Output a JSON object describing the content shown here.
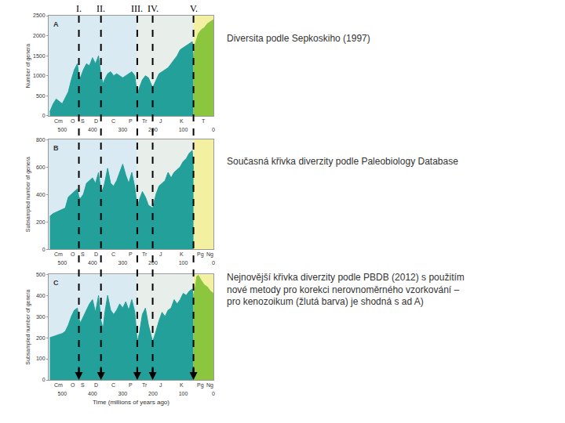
{
  "chart_data": [
    {
      "type": "area",
      "label": "A",
      "y_title": "Number of genera",
      "xlim": [
        545,
        0
      ],
      "xticks": [
        500,
        400,
        300,
        200,
        100,
        0
      ],
      "ylim": [
        0,
        2500
      ],
      "yticks": [
        0,
        500,
        1000,
        1500,
        2000,
        2500
      ],
      "caption": [
        "Diversita podle Sepkoskiho (1997)"
      ],
      "bands": [
        {
          "x0": 545,
          "x1": 252,
          "color": "#d9eaf2"
        },
        {
          "x0": 252,
          "x1": 66,
          "color": "#e8eee9"
        },
        {
          "x0": 66,
          "x1": 0,
          "color": "#f4f0a2"
        }
      ],
      "periods": [
        {
          "x": 513,
          "label": "Cm"
        },
        {
          "x": 465,
          "label": "O"
        },
        {
          "x": 432,
          "label": "S"
        },
        {
          "x": 389,
          "label": "D"
        },
        {
          "x": 330,
          "label": "C"
        },
        {
          "x": 275,
          "label": "P"
        },
        {
          "x": 226,
          "label": "Tr"
        },
        {
          "x": 173,
          "label": "J"
        },
        {
          "x": 105,
          "label": "K"
        },
        {
          "x": 33,
          "label": "T"
        }
      ],
      "series": [
        {
          "color": "#22a099",
          "x": [
            541,
            530,
            520,
            510,
            500,
            490,
            480,
            470,
            460,
            450,
            445,
            440,
            430,
            420,
            410,
            400,
            390,
            380,
            372,
            365,
            360,
            350,
            340,
            330,
            320,
            310,
            300,
            290,
            280,
            270,
            260,
            252,
            245,
            235,
            225,
            215,
            201,
            190,
            180,
            170,
            160,
            150,
            140,
            130,
            120,
            110,
            100,
            90,
            80,
            70,
            66
          ],
          "values": [
            100,
            300,
            420,
            350,
            300,
            450,
            600,
            900,
            1150,
            1300,
            1000,
            950,
            1150,
            1300,
            1250,
            1450,
            1300,
            1500,
            1000,
            800,
            900,
            1050,
            1100,
            1000,
            1050,
            1000,
            950,
            1000,
            1050,
            1100,
            1000,
            500,
            700,
            900,
            1000,
            950,
            700,
            900,
            1050,
            1100,
            1150,
            1200,
            1300,
            1400,
            1500,
            1650,
            1700,
            1750,
            1800,
            1850,
            1400
          ]
        },
        {
          "color": "#8cc63e",
          "x": [
            66,
            60,
            50,
            40,
            30,
            20,
            10,
            0
          ],
          "values": [
            1400,
            1800,
            2050,
            2150,
            2200,
            2300,
            2350,
            2400
          ]
        }
      ]
    },
    {
      "type": "area",
      "label": "B",
      "y_title": "Subsampled number of genera",
      "xlim": [
        545,
        0
      ],
      "xticks": [
        500,
        400,
        300,
        200,
        100,
        0
      ],
      "ylim": [
        0,
        800
      ],
      "yticks": [
        0,
        200,
        400,
        600,
        800
      ],
      "caption": [
        "Současná křivka diverzity podle Paleobiology Database"
      ],
      "bands": [
        {
          "x0": 545,
          "x1": 252,
          "color": "#d9eaf2"
        },
        {
          "x0": 252,
          "x1": 66,
          "color": "#e8eee9"
        },
        {
          "x0": 66,
          "x1": 0,
          "color": "#f4f0a2"
        }
      ],
      "periods": [
        {
          "x": 513,
          "label": "Cm"
        },
        {
          "x": 465,
          "label": "O"
        },
        {
          "x": 432,
          "label": "S"
        },
        {
          "x": 389,
          "label": "D"
        },
        {
          "x": 330,
          "label": "C"
        },
        {
          "x": 275,
          "label": "P"
        },
        {
          "x": 226,
          "label": "Tr"
        },
        {
          "x": 173,
          "label": "J"
        },
        {
          "x": 105,
          "label": "K"
        },
        {
          "x": 44,
          "label": "Pg"
        },
        {
          "x": 12,
          "label": "Ng"
        }
      ],
      "series": [
        {
          "color": "#22a099",
          "x": [
            541,
            530,
            520,
            510,
            500,
            490,
            480,
            470,
            460,
            450,
            445,
            440,
            430,
            420,
            410,
            400,
            390,
            380,
            372,
            365,
            360,
            350,
            340,
            330,
            320,
            310,
            300,
            290,
            280,
            270,
            260,
            252,
            245,
            235,
            225,
            215,
            201,
            190,
            180,
            170,
            160,
            150,
            140,
            130,
            120,
            110,
            100,
            90,
            80,
            70,
            66
          ],
          "values": [
            240,
            260,
            270,
            280,
            290,
            300,
            380,
            400,
            420,
            440,
            380,
            370,
            400,
            480,
            500,
            520,
            480,
            560,
            420,
            440,
            480,
            590,
            480,
            460,
            500,
            560,
            620,
            540,
            480,
            560,
            450,
            300,
            360,
            420,
            380,
            320,
            300,
            400,
            460,
            480,
            500,
            560,
            520,
            560,
            580,
            600,
            640,
            660,
            700,
            720,
            580
          ]
        }
      ]
    },
    {
      "type": "area",
      "label": "C",
      "y_title": "Subsampled number of genera",
      "x_title": "Time (millions of years ago)",
      "xlim": [
        545,
        0
      ],
      "xticks": [
        500,
        400,
        300,
        200,
        100,
        0
      ],
      "ylim": [
        0,
        500
      ],
      "yticks": [
        0,
        100,
        200,
        300,
        400,
        500
      ],
      "caption": [
        "Nejnovější křivka diverzity podle PBDB (2012) s použitím",
        "nové metody pro korekci nerovnoměrného vzorkování –",
        "pro kenozoikum (žlutá barva) je shodná s ad A)"
      ],
      "bands": [
        {
          "x0": 545,
          "x1": 252,
          "color": "#d9eaf2"
        },
        {
          "x0": 252,
          "x1": 66,
          "color": "#e8eee9"
        },
        {
          "x0": 66,
          "x1": 0,
          "color": "#f4f0a2"
        }
      ],
      "periods": [
        {
          "x": 513,
          "label": "Cm"
        },
        {
          "x": 465,
          "label": "O"
        },
        {
          "x": 432,
          "label": "S"
        },
        {
          "x": 389,
          "label": "D"
        },
        {
          "x": 330,
          "label": "C"
        },
        {
          "x": 275,
          "label": "P"
        },
        {
          "x": 226,
          "label": "Tr"
        },
        {
          "x": 173,
          "label": "J"
        },
        {
          "x": 105,
          "label": "K"
        },
        {
          "x": 44,
          "label": "Pg"
        },
        {
          "x": 12,
          "label": "Ng"
        }
      ],
      "series": [
        {
          "color": "#22a099",
          "x": [
            541,
            530,
            520,
            510,
            500,
            490,
            480,
            470,
            460,
            450,
            445,
            440,
            430,
            420,
            410,
            400,
            390,
            380,
            372,
            365,
            360,
            350,
            340,
            330,
            320,
            310,
            300,
            290,
            280,
            270,
            260,
            252,
            245,
            235,
            225,
            215,
            201,
            190,
            180,
            170,
            160,
            150,
            140,
            130,
            120,
            110,
            100,
            90,
            80,
            70,
            66
          ],
          "values": [
            200,
            205,
            210,
            215,
            220,
            230,
            260,
            300,
            330,
            340,
            290,
            270,
            300,
            330,
            360,
            380,
            320,
            400,
            280,
            240,
            310,
            400,
            330,
            310,
            330,
            360,
            340,
            370,
            330,
            380,
            320,
            180,
            220,
            310,
            340,
            260,
            180,
            230,
            280,
            320,
            300,
            330,
            340,
            380,
            360,
            380,
            410,
            400,
            420,
            430,
            380
          ]
        },
        {
          "color": "#8cc63e",
          "x": [
            66,
            60,
            55,
            50,
            40,
            30,
            20,
            10,
            0
          ],
          "values": [
            400,
            440,
            490,
            495,
            470,
            450,
            440,
            420,
            410
          ]
        }
      ]
    }
  ],
  "events": [
    {
      "x": 445,
      "label": "I."
    },
    {
      "x": 372,
      "label": "II."
    },
    {
      "x": 252,
      "label": "III."
    },
    {
      "x": 201,
      "label": "IV."
    },
    {
      "x": 66,
      "label": "V."
    }
  ],
  "events_line_style": "dash"
}
